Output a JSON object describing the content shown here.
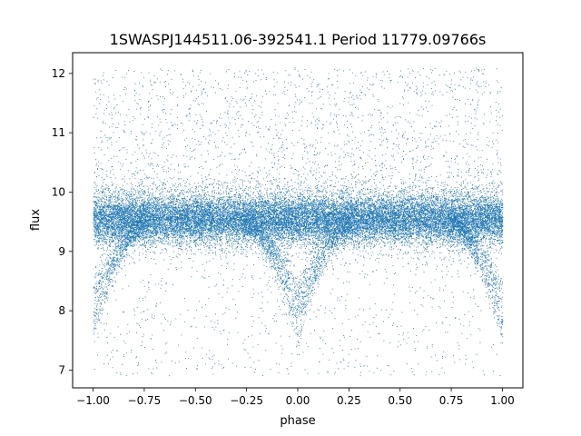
{
  "chart_data": {
    "type": "scatter",
    "title": "1SWASPJ144511.06-392541.1 Period 11779.09766s",
    "xlabel": "phase",
    "ylabel": "flux",
    "xlim": [
      -1.1,
      1.1
    ],
    "ylim": [
      6.7,
      12.35
    ],
    "xticks": [
      -1.0,
      -0.75,
      -0.5,
      -0.25,
      0.0,
      0.25,
      0.5,
      0.75,
      1.0
    ],
    "xtick_labels": [
      "−1.00",
      "−0.75",
      "−0.50",
      "−0.25",
      "0.00",
      "0.25",
      "0.50",
      "0.75",
      "1.00"
    ],
    "yticks": [
      7,
      8,
      9,
      10,
      11,
      12
    ],
    "ytick_labels": [
      "7",
      "8",
      "9",
      "10",
      "11",
      "12"
    ],
    "grid": false,
    "legend": "none",
    "marker_color": "#1f77b4",
    "series": [
      {
        "baseline_flux": 9.55,
        "baseline_scatter": 0.22,
        "phase_range": [
          -1.0,
          1.0
        ],
        "eclipse_centers": [
          -1.0,
          0.0,
          1.0
        ],
        "eclipse_depth_flux": 7.6,
        "eclipse_half_width_phase": 0.32,
        "flux_range_observed": [
          6.9,
          12.1
        ],
        "envelope": [
          {
            "phase": -1.0,
            "flux_min": 7.4,
            "flux_max": 10.0
          },
          {
            "phase": -0.9,
            "flux_min": 7.9,
            "flux_max": 10.0
          },
          {
            "phase": -0.8,
            "flux_min": 8.5,
            "flux_max": 10.0
          },
          {
            "phase": -0.7,
            "flux_min": 9.0,
            "flux_max": 10.0
          },
          {
            "phase": -0.5,
            "flux_min": 9.1,
            "flux_max": 10.0
          },
          {
            "phase": -0.3,
            "flux_min": 8.9,
            "flux_max": 10.0
          },
          {
            "phase": -0.2,
            "flux_min": 8.3,
            "flux_max": 10.0
          },
          {
            "phase": -0.1,
            "flux_min": 7.8,
            "flux_max": 10.0
          },
          {
            "phase": 0.0,
            "flux_min": 7.4,
            "flux_max": 10.0
          },
          {
            "phase": 0.1,
            "flux_min": 7.9,
            "flux_max": 10.0
          },
          {
            "phase": 0.2,
            "flux_min": 8.5,
            "flux_max": 10.0
          },
          {
            "phase": 0.3,
            "flux_min": 9.0,
            "flux_max": 10.0
          },
          {
            "phase": 0.5,
            "flux_min": 9.1,
            "flux_max": 10.0
          },
          {
            "phase": 0.7,
            "flux_min": 8.9,
            "flux_max": 10.0
          },
          {
            "phase": 0.8,
            "flux_min": 8.3,
            "flux_max": 10.0
          },
          {
            "phase": 0.9,
            "flux_min": 7.8,
            "flux_max": 10.0
          },
          {
            "phase": 1.0,
            "flux_min": 7.4,
            "flux_max": 10.0
          }
        ]
      }
    ]
  }
}
